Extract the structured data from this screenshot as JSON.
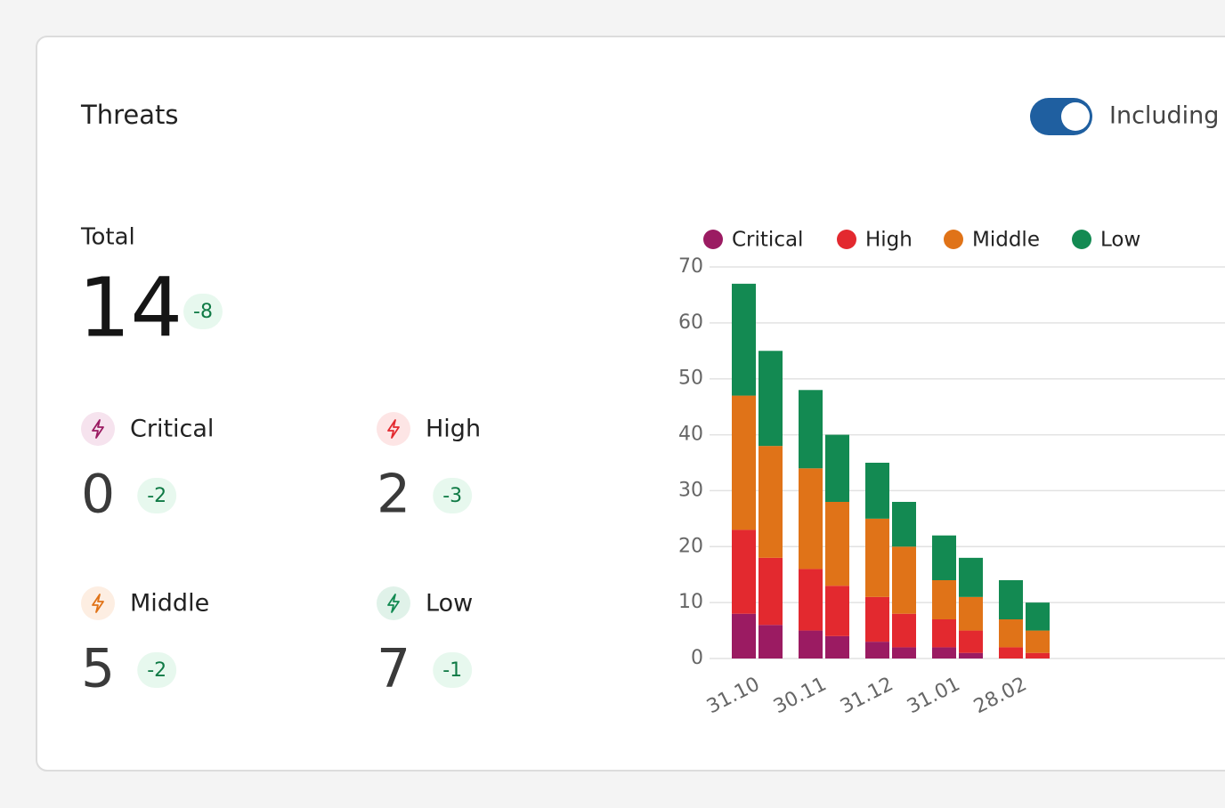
{
  "header": {
    "title": "Threats",
    "toggle_label": "Including"
  },
  "stats": {
    "total": {
      "label": "Total",
      "value": 14,
      "delta": -8
    },
    "items": [
      {
        "label": "Critical",
        "value": 0,
        "delta": -2
      },
      {
        "label": "High",
        "value": 2,
        "delta": -3
      },
      {
        "label": "Middle",
        "value": 5,
        "delta": -2
      },
      {
        "label": "Low",
        "value": 7,
        "delta": -1
      }
    ]
  },
  "chart_data": {
    "type": "stacked-bar",
    "categories": [
      "31.10",
      null,
      "30.11",
      null,
      "31.12",
      null,
      "31.01",
      null,
      "28.02",
      null
    ],
    "series": [
      {
        "name": "Critical",
        "color": "#9b1b62",
        "values": [
          8,
          6,
          5,
          4,
          3,
          2,
          2,
          1,
          0,
          0
        ]
      },
      {
        "name": "High",
        "color": "#e3292f",
        "values": [
          15,
          12,
          11,
          9,
          8,
          6,
          5,
          4,
          2,
          1
        ]
      },
      {
        "name": "Middle",
        "color": "#e07318",
        "values": [
          24,
          20,
          18,
          15,
          14,
          12,
          7,
          6,
          5,
          4
        ]
      },
      {
        "name": "Low",
        "color": "#138a52",
        "values": [
          20,
          17,
          14,
          12,
          10,
          8,
          8,
          7,
          7,
          5
        ]
      }
    ],
    "ylim": [
      0,
      70
    ],
    "yticks": [
      0,
      10,
      20,
      30,
      40,
      50,
      60,
      70
    ],
    "grid": true,
    "legend": "top"
  }
}
